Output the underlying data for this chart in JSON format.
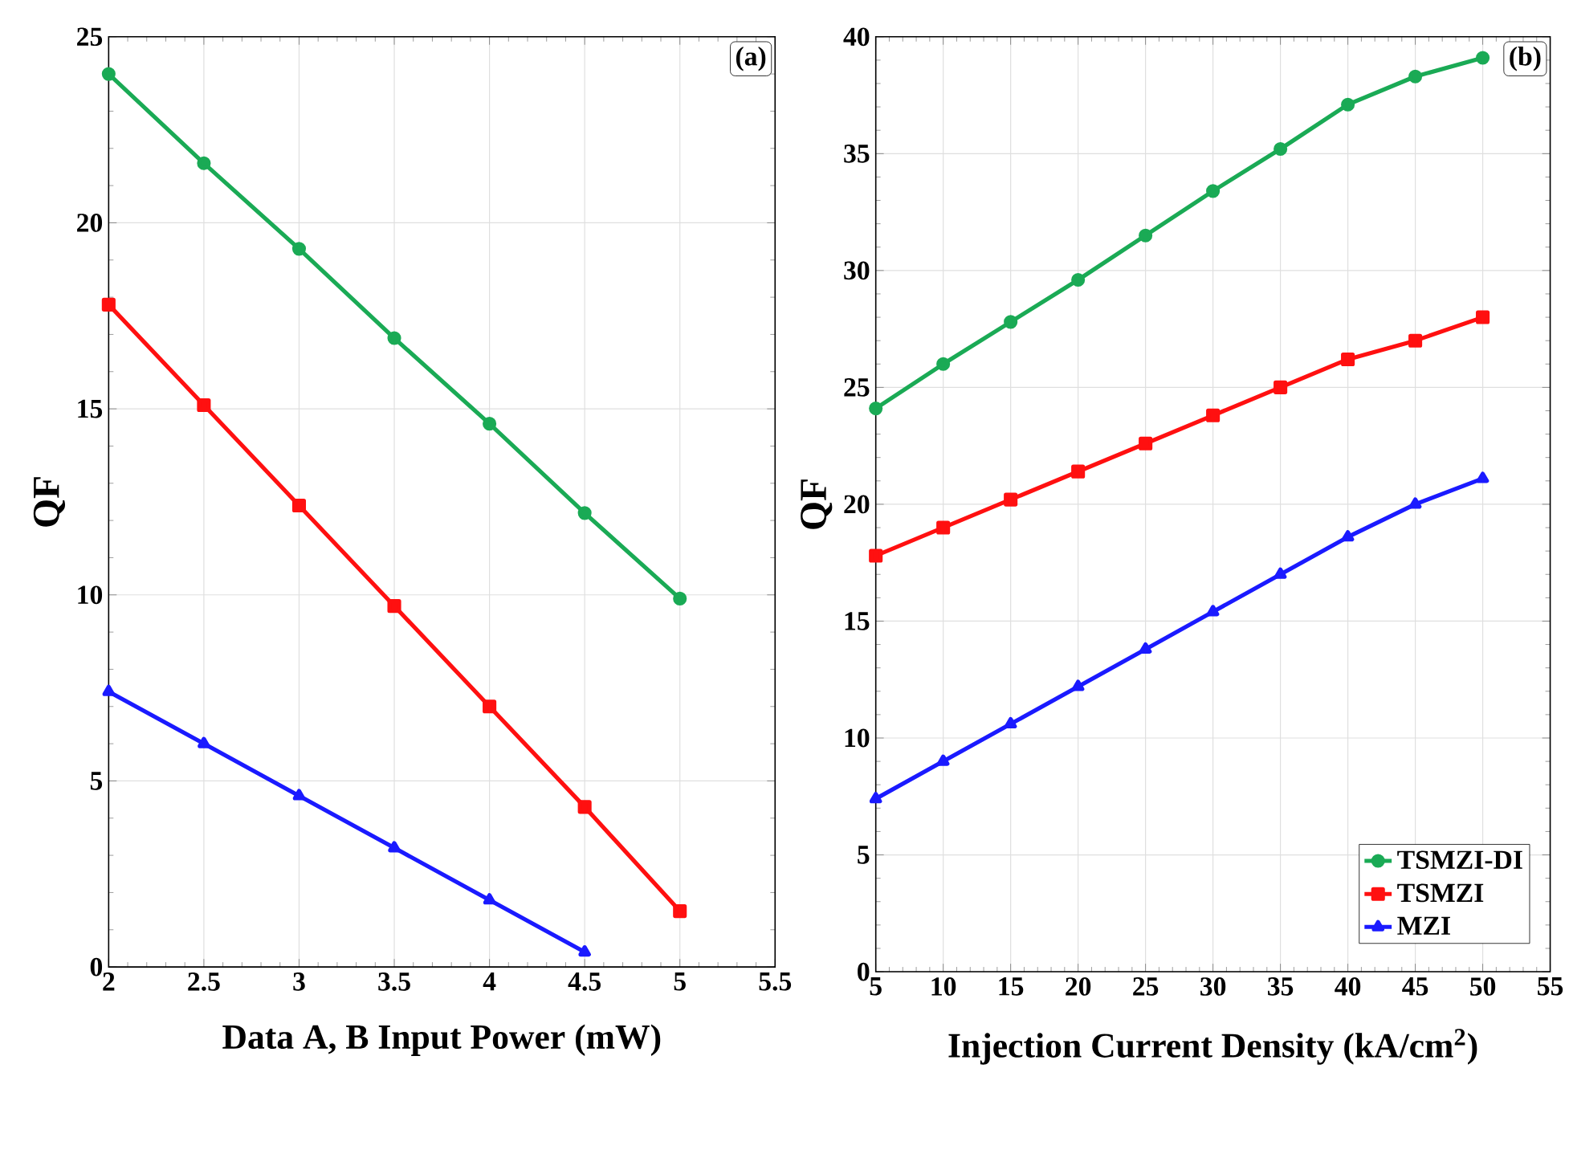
{
  "chart_data": [
    {
      "type": "line",
      "xlabel": "Data A, B Input Power (mW)",
      "ylabel": "QF",
      "annotations": [
        "(a)"
      ],
      "xlim": [
        2,
        5.5
      ],
      "ylim": [
        0,
        25
      ],
      "xticks": [
        2,
        2.5,
        3,
        3.5,
        4,
        4.5,
        5,
        5.5
      ],
      "yticks": [
        0,
        5,
        10,
        15,
        20,
        25
      ],
      "grid": true,
      "series": [
        {
          "color": "#1aaa55",
          "marker": "circle",
          "x": [
            2,
            2.5,
            3,
            3.5,
            4,
            4.5,
            5
          ],
          "values": [
            24.0,
            21.6,
            19.3,
            16.9,
            14.6,
            12.2,
            9.9
          ]
        },
        {
          "color": "#ff1010",
          "marker": "square",
          "x": [
            2,
            2.5,
            3,
            3.5,
            4,
            4.5,
            5
          ],
          "values": [
            17.8,
            15.1,
            12.4,
            9.7,
            7.0,
            4.3,
            1.5
          ]
        },
        {
          "color": "#1a1aff",
          "marker": "triangle",
          "x": [
            2,
            2.5,
            3,
            3.5,
            4,
            4.5
          ],
          "values": [
            7.4,
            6.0,
            4.6,
            3.2,
            1.8,
            0.4
          ]
        }
      ]
    },
    {
      "type": "line",
      "xlabel": "Injection Current Density (kA/cm$^{2}$)",
      "ylabel": "QF",
      "annotations": [
        "(b)"
      ],
      "xlim": [
        5,
        55
      ],
      "ylim": [
        0,
        40
      ],
      "xticks": [
        5,
        10,
        15,
        20,
        25,
        30,
        35,
        40,
        45,
        50,
        55
      ],
      "yticks": [
        0,
        5,
        10,
        15,
        20,
        25,
        30,
        35,
        40
      ],
      "grid": true,
      "legend": "bottom right",
      "x": [
        5,
        10,
        15,
        20,
        25,
        30,
        35,
        40,
        45,
        50
      ],
      "series": [
        {
          "name": "TSMZI-DI",
          "color": "#1aaa55",
          "marker": "circle",
          "values": [
            24.1,
            26.0,
            27.8,
            29.6,
            31.5,
            33.4,
            35.2,
            37.1,
            38.3,
            39.1
          ]
        },
        {
          "name": "TSMZI",
          "color": "#ff1010",
          "marker": "square",
          "values": [
            17.8,
            19.0,
            20.2,
            21.4,
            22.6,
            23.8,
            25.0,
            26.2,
            27.0,
            28.0
          ]
        },
        {
          "name": "MZI",
          "color": "#1a1aff",
          "marker": "triangle",
          "values": [
            7.4,
            9.0,
            10.6,
            12.2,
            13.8,
            15.4,
            17.0,
            18.6,
            20.0,
            21.1
          ]
        }
      ]
    }
  ]
}
